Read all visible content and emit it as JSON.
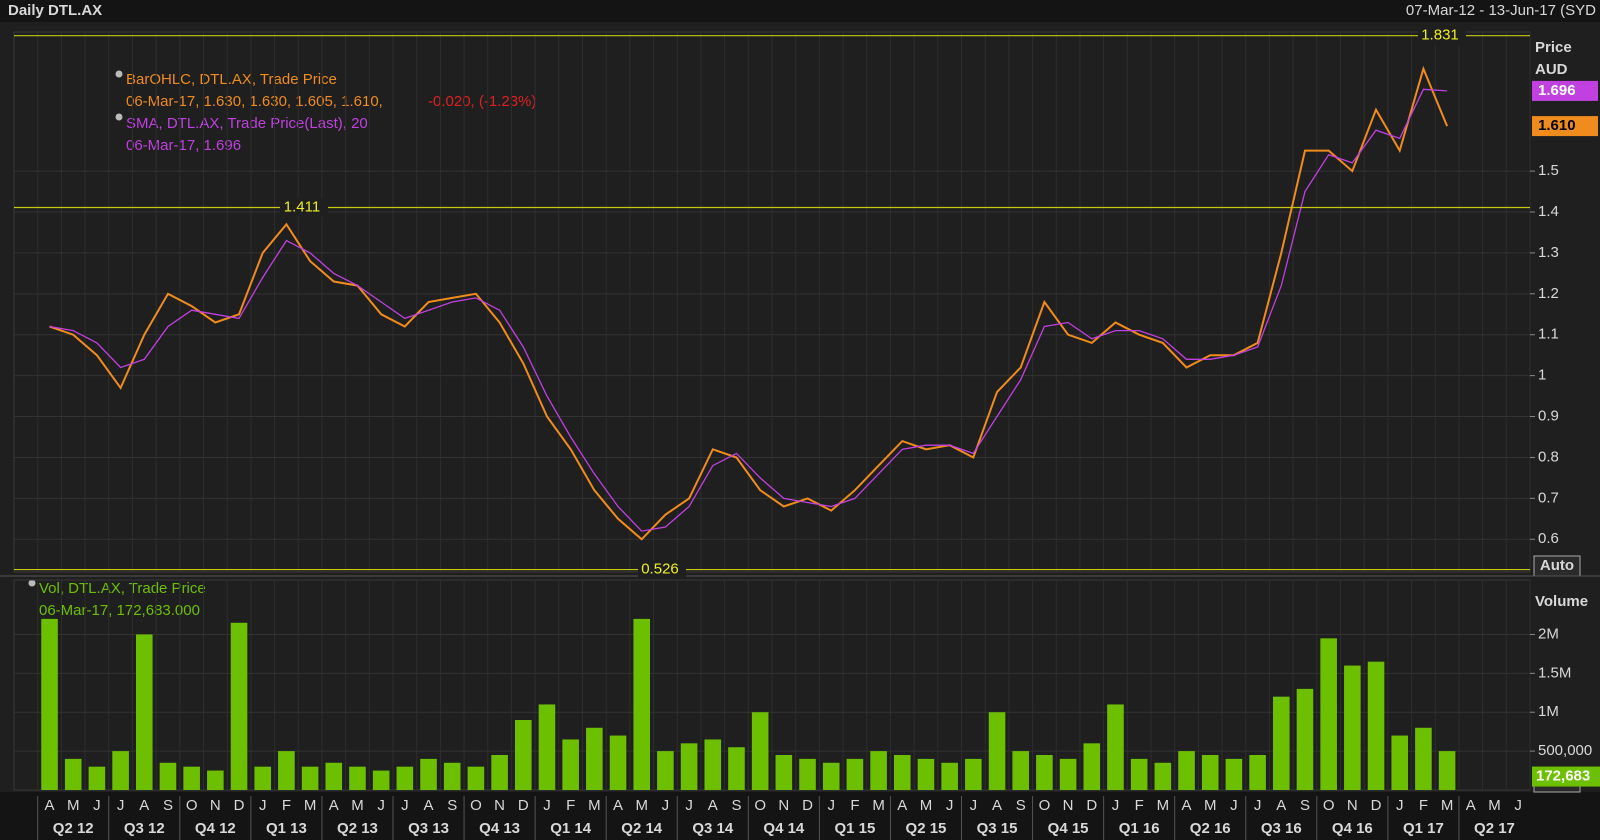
{
  "chart_data": [
    {
      "type": "line",
      "title": "Daily DTL.AX",
      "subtitle": "07-Mar-12 - 13-Jun-17 (SYD",
      "ylabel": "Price",
      "yunit": "AUD",
      "scale_button": "Auto",
      "categories": [
        "A",
        "M",
        "J",
        "J",
        "A",
        "S",
        "O",
        "N",
        "D",
        "J",
        "F",
        "M",
        "A",
        "M",
        "J",
        "J",
        "A",
        "S",
        "O",
        "N",
        "D",
        "J",
        "F",
        "M",
        "A",
        "M",
        "J",
        "J",
        "A",
        "S",
        "O",
        "N",
        "D",
        "J",
        "F",
        "M",
        "A",
        "M",
        "J",
        "J",
        "A",
        "S",
        "O",
        "N",
        "D",
        "J",
        "F",
        "M",
        "A",
        "M",
        "J",
        "J",
        "A",
        "S",
        "O",
        "N",
        "D",
        "J",
        "F",
        "M",
        "A",
        "M",
        "J"
      ],
      "quarters": [
        "Q2 12",
        "Q3 12",
        "Q4 12",
        "Q1 13",
        "Q2 13",
        "Q3 13",
        "Q4 13",
        "Q1 14",
        "Q2 14",
        "Q3 14",
        "Q4 14",
        "Q1 15",
        "Q2 15",
        "Q3 15",
        "Q4 15",
        "Q1 16",
        "Q2 16",
        "Q3 16",
        "Q4 16",
        "Q1 17",
        "Q2 17"
      ],
      "ylim": [
        0.52,
        1.84
      ],
      "yticks": [
        0.6,
        0.7,
        0.8,
        0.9,
        1,
        1.1,
        1.2,
        1.3,
        1.4,
        1.5
      ],
      "reference_lines": [
        1.831,
        1.411,
        0.526
      ],
      "reference_color": "#c8c814",
      "grid": true,
      "series": [
        {
          "name": "BarOHLC, DTL.AX, Trade Price",
          "color": "#f08c1e",
          "legend_detail": "06-Mar-17, 1.630, 1.630, 1.605, 1.610,",
          "legend_change": "-0.020, (-1.23%)",
          "last_value": {
            "value": 1.61,
            "label": "1.610"
          },
          "values": [
            1.12,
            1.1,
            1.05,
            0.97,
            1.1,
            1.2,
            1.17,
            1.13,
            1.15,
            1.3,
            1.37,
            1.28,
            1.23,
            1.22,
            1.15,
            1.12,
            1.18,
            1.19,
            1.2,
            1.13,
            1.03,
            0.9,
            0.82,
            0.72,
            0.65,
            0.6,
            0.66,
            0.7,
            0.82,
            0.8,
            0.72,
            0.68,
            0.7,
            0.67,
            0.72,
            0.78,
            0.84,
            0.82,
            0.83,
            0.8,
            0.96,
            1.02,
            1.18,
            1.1,
            1.08,
            1.13,
            1.1,
            1.08,
            1.02,
            1.05,
            1.05,
            1.08,
            1.3,
            1.55,
            1.55,
            1.5,
            1.65,
            1.55,
            1.75,
            1.61,
            null,
            null,
            null
          ]
        },
        {
          "name": "SMA, DTL.AX, Trade Price(Last),  20",
          "color": "#c040e0",
          "legend_detail": "06-Mar-17, 1.696",
          "last_value": 1.696,
          "values": [
            1.12,
            1.11,
            1.08,
            1.02,
            1.04,
            1.12,
            1.16,
            1.15,
            1.14,
            1.24,
            1.33,
            1.3,
            1.25,
            1.22,
            1.18,
            1.14,
            1.16,
            1.18,
            1.19,
            1.16,
            1.07,
            0.95,
            0.85,
            0.76,
            0.68,
            0.62,
            0.63,
            0.68,
            0.78,
            0.81,
            0.75,
            0.7,
            0.69,
            0.68,
            0.7,
            0.76,
            0.82,
            0.83,
            0.83,
            0.81,
            0.9,
            0.99,
            1.12,
            1.13,
            1.09,
            1.11,
            1.11,
            1.09,
            1.04,
            1.04,
            1.05,
            1.07,
            1.22,
            1.45,
            1.54,
            1.52,
            1.6,
            1.58,
            1.7,
            1.696,
            null,
            null,
            null
          ]
        }
      ]
    },
    {
      "type": "bar",
      "ylabel": "Volume",
      "scale_button": "Auto",
      "ylim": [
        0,
        2700000
      ],
      "yticks": [
        {
          "value": 500000,
          "label": "500,000"
        },
        {
          "value": 1000000,
          "label": "1M"
        },
        {
          "value": 1500000,
          "label": "1.5M"
        },
        {
          "value": 2000000,
          "label": "2M"
        }
      ],
      "series": [
        {
          "name": "Vol, DTL.AX, Trade Price",
          "color": "#6cc000",
          "legend_detail": "06-Mar-17, 172,683.000",
          "last_value": {
            "value": 172683,
            "label": "172,683"
          },
          "values": [
            2200000,
            400000,
            300000,
            500000,
            2000000,
            350000,
            300000,
            250000,
            2150000,
            300000,
            500000,
            300000,
            350000,
            300000,
            250000,
            300000,
            400000,
            350000,
            300000,
            450000,
            900000,
            1100000,
            650000,
            800000,
            700000,
            2200000,
            500000,
            600000,
            650000,
            550000,
            1000000,
            450000,
            400000,
            350000,
            400000,
            500000,
            450000,
            400000,
            350000,
            400000,
            1000000,
            500000,
            450000,
            400000,
            600000,
            1100000,
            400000,
            350000,
            500000,
            450000,
            400000,
            450000,
            1200000,
            1300000,
            1950000,
            1600000,
            1650000,
            700000,
            800000,
            500000,
            null,
            null,
            null
          ]
        }
      ]
    }
  ]
}
